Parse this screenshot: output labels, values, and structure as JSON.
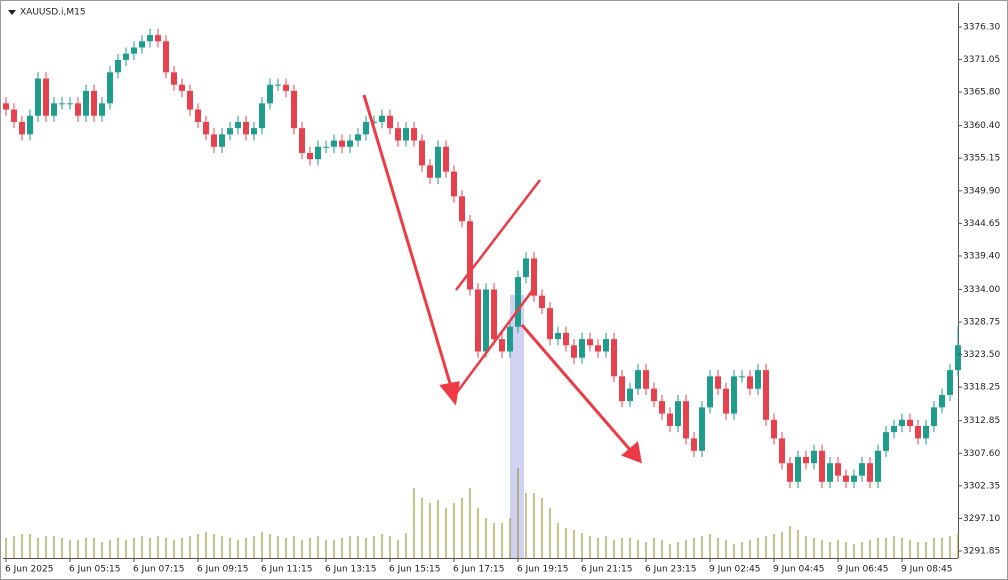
{
  "chart_data": {
    "type": "candlestick",
    "title": "XAUUSD.i,M15",
    "up_color": "#1e9c8c",
    "down_color": "#e8414e",
    "volume_color": "#8b8b1a",
    "ylim": [
      3290.72,
      3380.17
    ],
    "yticks": [
      {
        "value": 3376.3,
        "label": "3376.30"
      },
      3371.05,
      {
        "value": 3365.8,
        "label": "3365.80"
      },
      {
        "value": 3360.4,
        "label": "3360.40"
      },
      3355.15,
      {
        "value": 3349.9,
        "label": "3349.90"
      },
      3344.65,
      {
        "value": 3339.4,
        "label": "3339.40"
      },
      {
        "value": 3334.0,
        "label": "3334.00"
      },
      3328.75,
      {
        "value": 3323.5,
        "label": "3323.50"
      },
      3318.25,
      3312.85,
      {
        "value": 3307.6,
        "label": "3307.60"
      },
      3302.35,
      {
        "value": 3297.1,
        "label": "3297.10"
      },
      3291.85
    ],
    "xticks": [
      {
        "value": 0,
        "label": "6 Jun 2025"
      },
      {
        "value": 8,
        "label": "6 Jun 05:15"
      },
      {
        "value": 16,
        "label": "6 Jun 07:15"
      },
      {
        "value": 24,
        "label": "6 Jun 09:15"
      },
      {
        "value": 32,
        "label": "6 Jun 11:15"
      },
      {
        "value": 40,
        "label": "6 Jun 13:15"
      },
      {
        "value": 48,
        "label": "6 Jun 15:15"
      },
      {
        "value": 56,
        "label": "6 Jun 17:15"
      },
      {
        "value": 64,
        "label": "6 Jun 19:15"
      },
      {
        "value": 72,
        "label": "6 Jun 21:15"
      },
      {
        "value": 80,
        "label": "6 Jun 23:15"
      },
      {
        "value": 88,
        "label": "9 Jun 02:45"
      },
      {
        "value": 96,
        "label": "9 Jun 04:45"
      },
      {
        "value": 104,
        "label": "9 Jun 06:45"
      },
      {
        "value": 112,
        "label": "9 Jun 08:45"
      }
    ],
    "xlim": [
      -0.5,
      119.5
    ],
    "candles": [
      [
        3364,
        3365,
        3362,
        3363
      ],
      [
        3363,
        3364,
        3360,
        3361
      ],
      [
        3361,
        3362,
        3358,
        3359
      ],
      [
        3359,
        3363,
        3358,
        3362
      ],
      [
        3362,
        3369,
        3361,
        3368
      ],
      [
        3368,
        3369,
        3361,
        3362
      ],
      [
        3362,
        3365,
        3361,
        3364
      ],
      [
        3364,
        3365,
        3363,
        3364
      ],
      [
        3364,
        3365,
        3363,
        3364
      ],
      [
        3364,
        3365,
        3361,
        3362
      ],
      [
        3362,
        3367,
        3361,
        3366
      ],
      [
        3366,
        3367,
        3361,
        3362
      ],
      [
        3362,
        3365,
        3361,
        3364
      ],
      [
        3364,
        3370,
        3363,
        3369
      ],
      [
        3369,
        3372,
        3368,
        3371
      ],
      [
        3371,
        3373,
        3370,
        3372
      ],
      [
        3372,
        3374,
        3371,
        3373
      ],
      [
        3373,
        3375,
        3372,
        3374
      ],
      [
        3374,
        3376,
        3373,
        3375
      ],
      [
        3375,
        3376,
        3373,
        3374
      ],
      [
        3374,
        3375,
        3368,
        3369
      ],
      [
        3369,
        3370,
        3366,
        3367
      ],
      [
        3367,
        3368,
        3365,
        3366
      ],
      [
        3366,
        3367,
        3362,
        3363
      ],
      [
        3363,
        3364,
        3360,
        3361
      ],
      [
        3361,
        3362,
        3358,
        3359
      ],
      [
        3359,
        3360,
        3356,
        3357
      ],
      [
        3357,
        3360,
        3356,
        3359
      ],
      [
        3359,
        3361,
        3358,
        3360
      ],
      [
        3360,
        3362,
        3359,
        3361
      ],
      [
        3361,
        3362,
        3358,
        3359
      ],
      [
        3359,
        3361,
        3358,
        3360
      ],
      [
        3360,
        3365,
        3359,
        3364
      ],
      [
        3364,
        3368,
        3363,
        3367
      ],
      [
        3367,
        3368,
        3366,
        3367
      ],
      [
        3367,
        3368,
        3365,
        3366
      ],
      [
        3366,
        3367,
        3359,
        3360
      ],
      [
        3360,
        3361,
        3355,
        3356
      ],
      [
        3356,
        3357,
        3354,
        3355
      ],
      [
        3355,
        3358,
        3354,
        3357
      ],
      [
        3357,
        3358,
        3356,
        3357
      ],
      [
        3357,
        3359,
        3356,
        3358
      ],
      [
        3358,
        3359,
        3356,
        3357
      ],
      [
        3357,
        3359,
        3356,
        3358
      ],
      [
        3358,
        3360,
        3357,
        3359
      ],
      [
        3359,
        3362,
        3358,
        3361
      ],
      [
        3361,
        3362,
        3360,
        3361
      ],
      [
        3361,
        3363,
        3360,
        3362
      ],
      [
        3362,
        3363,
        3359,
        3360
      ],
      [
        3360,
        3361,
        3357,
        3358
      ],
      [
        3358,
        3361,
        3357,
        3360
      ],
      [
        3360,
        3361,
        3357,
        3358
      ],
      [
        3358,
        3359,
        3353,
        3354
      ],
      [
        3354,
        3355,
        3351,
        3352
      ],
      [
        3352,
        3358,
        3351,
        3357
      ],
      [
        3357,
        3358,
        3352,
        3353
      ],
      [
        3353,
        3354,
        3348,
        3349
      ],
      [
        3349,
        3350,
        3344,
        3345
      ],
      [
        3345,
        3346,
        3333,
        3334
      ],
      [
        3334,
        3335,
        3323,
        3324
      ],
      [
        3324,
        3335,
        3323,
        3334
      ],
      [
        3334,
        3335,
        3325,
        3326
      ],
      [
        3326,
        3327,
        3323,
        3324
      ],
      [
        3324,
        3329,
        3323,
        3328
      ],
      [
        3328,
        3337,
        3327,
        3336
      ],
      [
        3336,
        3340,
        3335,
        3339
      ],
      [
        3339,
        3340,
        3332,
        3333
      ],
      [
        3333,
        3334,
        3330,
        3331
      ],
      [
        3331,
        3332,
        3325,
        3326
      ],
      [
        3326,
        3328,
        3325,
        3327
      ],
      [
        3327,
        3328,
        3324,
        3325
      ],
      [
        3325,
        3326,
        3322,
        3323
      ],
      [
        3323,
        3327,
        3322,
        3326
      ],
      [
        3326,
        3327,
        3324,
        3325
      ],
      [
        3325,
        3326,
        3323,
        3324
      ],
      [
        3324,
        3327,
        3323,
        3326
      ],
      [
        3326,
        3327,
        3319,
        3320
      ],
      [
        3320,
        3321,
        3315,
        3316
      ],
      [
        3316,
        3319,
        3315,
        3318
      ],
      [
        3318,
        3322,
        3317,
        3321
      ],
      [
        3321,
        3322,
        3317,
        3318
      ],
      [
        3318,
        3319,
        3315,
        3316
      ],
      [
        3316,
        3317,
        3313,
        3314
      ],
      [
        3314,
        3315,
        3311,
        3312
      ],
      [
        3312,
        3317,
        3311,
        3316
      ],
      [
        3316,
        3317,
        3309,
        3310
      ],
      [
        3310,
        3311,
        3307,
        3308
      ],
      [
        3308,
        3316,
        3307,
        3315
      ],
      [
        3315,
        3321,
        3314,
        3320
      ],
      [
        3320,
        3321,
        3317,
        3318
      ],
      [
        3318,
        3319,
        3313,
        3314
      ],
      [
        3314,
        3321,
        3313,
        3320
      ],
      [
        3320,
        3321,
        3319,
        3320
      ],
      [
        3320,
        3321,
        3317,
        3318
      ],
      [
        3318,
        3322,
        3317,
        3321
      ],
      [
        3321,
        3322,
        3312,
        3313
      ],
      [
        3313,
        3314,
        3309,
        3310
      ],
      [
        3310,
        3311,
        3305,
        3306
      ],
      [
        3306,
        3307,
        3302,
        3303
      ],
      [
        3303,
        3308,
        3302,
        3307
      ],
      [
        3307,
        3308,
        3305,
        3306
      ],
      [
        3306,
        3309,
        3305,
        3308
      ],
      [
        3308,
        3309,
        3302,
        3303
      ],
      [
        3303,
        3307,
        3302,
        3306
      ],
      [
        3306,
        3307,
        3303,
        3304
      ],
      [
        3304,
        3305,
        3302,
        3303
      ],
      [
        3303,
        3305,
        3302,
        3304
      ],
      [
        3304,
        3307,
        3303,
        3306
      ],
      [
        3306,
        3307,
        3302,
        3303
      ],
      [
        3303,
        3309,
        3302,
        3308
      ],
      [
        3308,
        3312,
        3307,
        3311
      ],
      [
        3311,
        3313,
        3310,
        3312
      ],
      [
        3312,
        3314,
        3311,
        3313
      ],
      [
        3313,
        3314,
        3311,
        3312
      ],
      [
        3312,
        3313,
        3309,
        3310
      ],
      [
        3310,
        3313,
        3309,
        3312
      ],
      [
        3312,
        3316,
        3311,
        3315
      ],
      [
        3315,
        3318,
        3314,
        3317
      ],
      [
        3317,
        3322,
        3316,
        3321
      ],
      [
        3321,
        3328,
        3320,
        3325
      ]
    ],
    "volume_lim": [
      0,
      100
    ],
    "volume": [
      20,
      22,
      24,
      24,
      20,
      22,
      22,
      20,
      18,
      18,
      20,
      20,
      16,
      18,
      20,
      18,
      20,
      22,
      20,
      22,
      20,
      18,
      20,
      22,
      24,
      26,
      24,
      22,
      20,
      18,
      20,
      22,
      26,
      24,
      22,
      20,
      22,
      18,
      20,
      22,
      18,
      18,
      20,
      22,
      22,
      20,
      22,
      24,
      22,
      18,
      25,
      70,
      60,
      55,
      58,
      50,
      55,
      60,
      70,
      50,
      40,
      35,
      35,
      40,
      90,
      65,
      65,
      60,
      50,
      35,
      30,
      28,
      25,
      22,
      20,
      22,
      18,
      20,
      20,
      18,
      16,
      20,
      18,
      14,
      16,
      18,
      20,
      22,
      24,
      20,
      18,
      14,
      16,
      18,
      20,
      22,
      24,
      26,
      32,
      28,
      22,
      20,
      18,
      16,
      18,
      16,
      14,
      16,
      18,
      20,
      20,
      22,
      20,
      18,
      16,
      16,
      20,
      20,
      22,
      24
    ]
  }
}
